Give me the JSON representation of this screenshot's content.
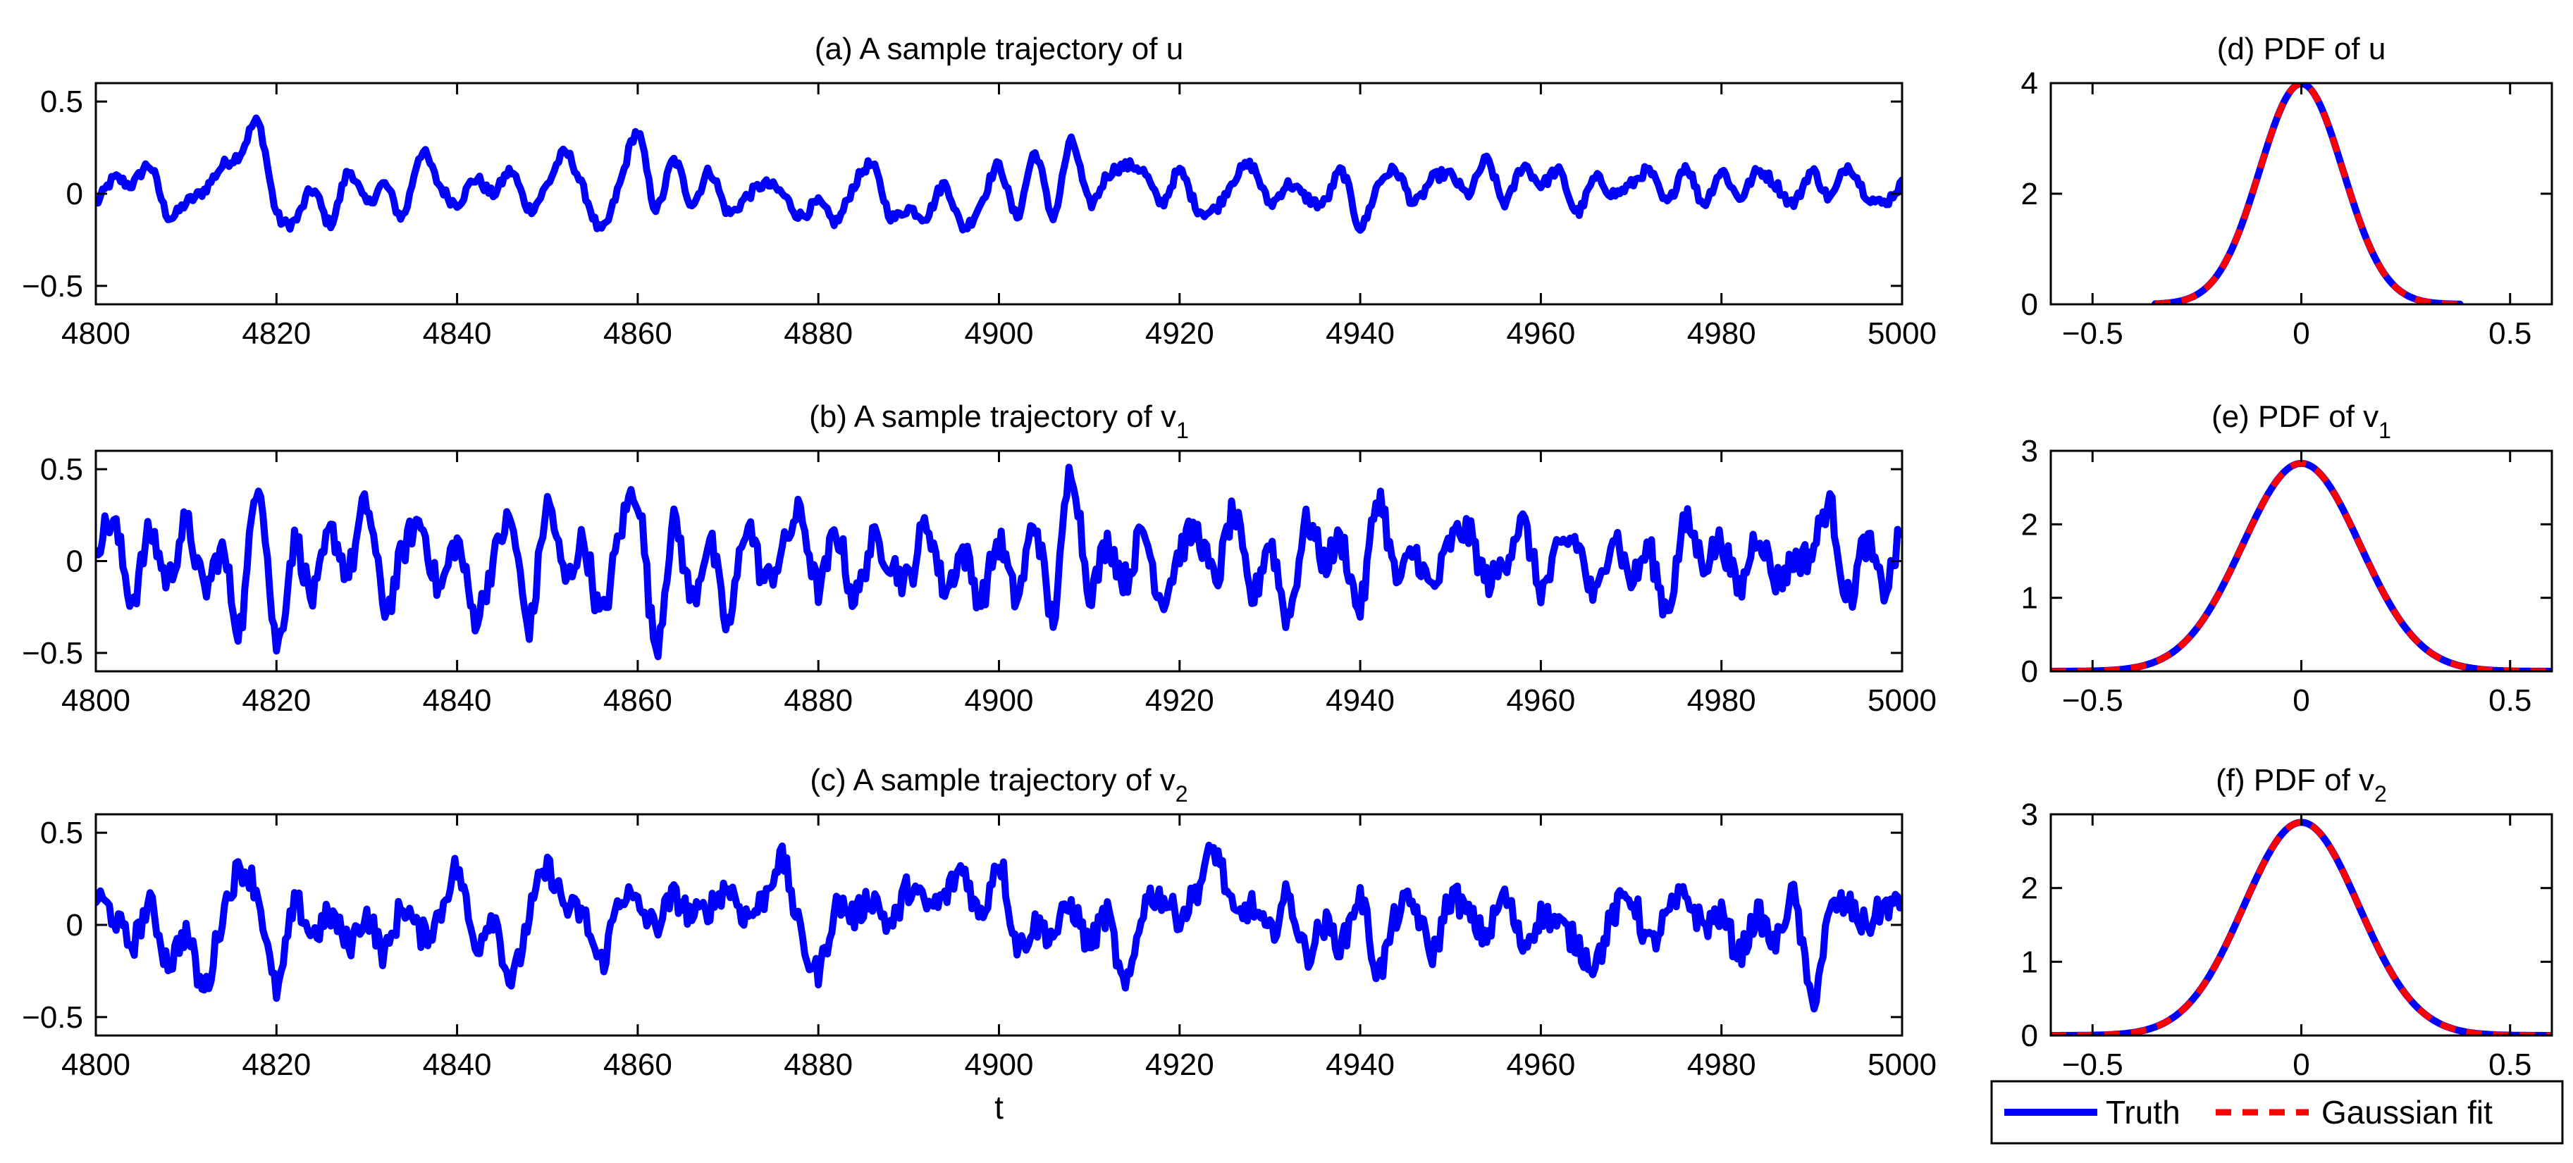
{
  "figure": {
    "xlabel_time": "t",
    "legend": {
      "entries": [
        {
          "label": "Truth",
          "color": "#0000ff",
          "style": "solid"
        },
        {
          "label": "Gaussian fit",
          "color": "#ff0000",
          "style": "dashed"
        }
      ],
      "placement": "bottom-right"
    }
  },
  "chart_data": [
    {
      "id": "a",
      "type": "line",
      "title_prefix": "(a)  A sample trajectory of u",
      "title_sub": "",
      "xlim": [
        4800,
        5000
      ],
      "ylim": [
        -0.6,
        0.6
      ],
      "xticks": [
        4800,
        4820,
        4840,
        4860,
        4880,
        4900,
        4920,
        4940,
        4960,
        4980,
        5000
      ],
      "yticks": [
        -0.5,
        0,
        0.5
      ],
      "ytick_labels": [
        "−0.5",
        "0",
        "0.5"
      ],
      "xlabel": "",
      "series": [
        {
          "name": "u",
          "color": "#0000ff",
          "noise_level": 0.03,
          "x": [
            4800,
            4802,
            4804,
            4806,
            4808,
            4810,
            4812,
            4814,
            4816,
            4818,
            4820,
            4822,
            4824,
            4826,
            4828,
            4830,
            4832,
            4834,
            4836,
            4838,
            4840,
            4842,
            4844,
            4846,
            4848,
            4850,
            4852,
            4854,
            4856,
            4858,
            4860,
            4862,
            4864,
            4866,
            4868,
            4870,
            4872,
            4874,
            4876,
            4878,
            4880,
            4882,
            4884,
            4886,
            4888,
            4890,
            4892,
            4894,
            4896,
            4898,
            4900,
            4902,
            4904,
            4906,
            4908,
            4910,
            4912,
            4914,
            4916,
            4918,
            4920,
            4922,
            4924,
            4926,
            4928,
            4930,
            4932,
            4934,
            4936,
            4938,
            4940,
            4942,
            4944,
            4946,
            4948,
            4950,
            4952,
            4954,
            4956,
            4958,
            4960,
            4962,
            4964,
            4966,
            4968,
            4970,
            4972,
            4974,
            4976,
            4978,
            4980,
            4982,
            4984,
            4986,
            4988,
            4990,
            4992,
            4994,
            4996,
            4998,
            5000
          ],
          "y": [
            -0.05,
            0.08,
            0.05,
            0.15,
            -0.12,
            -0.05,
            0.02,
            0.15,
            0.22,
            0.38,
            -0.1,
            -0.15,
            0.02,
            -0.16,
            0.12,
            -0.05,
            0.05,
            -0.12,
            0.22,
            0.05,
            -0.05,
            0.08,
            0.0,
            0.12,
            -0.08,
            0.05,
            0.22,
            0.02,
            -0.2,
            0.05,
            0.33,
            -0.08,
            0.18,
            -0.05,
            0.12,
            -0.1,
            -0.02,
            0.05,
            0.0,
            -0.12,
            -0.05,
            -0.15,
            0.05,
            0.15,
            -0.12,
            -0.08,
            -0.12,
            0.05,
            -0.18,
            -0.05,
            0.15,
            -0.12,
            0.22,
            -0.12,
            0.28,
            -0.05,
            0.1,
            0.15,
            0.12,
            -0.05,
            0.12,
            -0.08,
            -0.08,
            0.08,
            0.15,
            -0.05,
            0.05,
            -0.02,
            -0.05,
            0.12,
            -0.18,
            0.05,
            0.12,
            -0.05,
            0.08,
            0.1,
            0.0,
            0.18,
            -0.05,
            0.15,
            0.05,
            0.12,
            -0.1,
            0.08,
            0.0,
            0.05,
            0.12,
            -0.05,
            0.15,
            -0.05,
            0.12,
            -0.02,
            0.12,
            0.05,
            -0.05,
            0.12,
            -0.02,
            0.15,
            0.0,
            -0.05,
            0.05
          ]
        }
      ]
    },
    {
      "id": "b",
      "type": "line",
      "title_prefix": "(b)  A sample trajectory of v",
      "title_sub": "1",
      "xlim": [
        4800,
        5000
      ],
      "ylim": [
        -0.6,
        0.6
      ],
      "xticks": [
        4800,
        4820,
        4840,
        4860,
        4880,
        4900,
        4920,
        4940,
        4960,
        4980,
        5000
      ],
      "yticks": [
        -0.5,
        0,
        0.5
      ],
      "ytick_labels": [
        "−0.5",
        "0",
        "0.5"
      ],
      "xlabel": "",
      "series": [
        {
          "name": "v1",
          "color": "#0000ff",
          "noise_level": 0.09,
          "x": [
            4800,
            4802,
            4804,
            4806,
            4808,
            4810,
            4812,
            4814,
            4816,
            4818,
            4820,
            4822,
            4824,
            4826,
            4828,
            4830,
            4832,
            4834,
            4836,
            4838,
            4840,
            4842,
            4844,
            4846,
            4848,
            4850,
            4852,
            4854,
            4856,
            4858,
            4860,
            4862,
            4864,
            4866,
            4868,
            4870,
            4872,
            4874,
            4876,
            4878,
            4880,
            4882,
            4884,
            4886,
            4888,
            4890,
            4892,
            4894,
            4896,
            4898,
            4900,
            4902,
            4904,
            4906,
            4908,
            4910,
            4912,
            4914,
            4916,
            4918,
            4920,
            4922,
            4924,
            4926,
            4928,
            4930,
            4932,
            4934,
            4936,
            4938,
            4940,
            4942,
            4944,
            4946,
            4948,
            4950,
            4952,
            4954,
            4956,
            4958,
            4960,
            4962,
            4964,
            4966,
            4968,
            4970,
            4972,
            4974,
            4976,
            4978,
            4980,
            4982,
            4984,
            4986,
            4988,
            4990,
            4992,
            4994,
            4996,
            4998,
            5000
          ],
          "y": [
            0.1,
            0.2,
            -0.2,
            0.15,
            -0.1,
            0.2,
            -0.15,
            0.05,
            -0.35,
            0.45,
            -0.45,
            0.1,
            -0.2,
            0.15,
            -0.05,
            0.3,
            -0.25,
            0.05,
            0.2,
            -0.15,
            0.1,
            -0.3,
            0.0,
            0.2,
            -0.35,
            0.3,
            -0.1,
            0.1,
            -0.3,
            0.15,
            0.35,
            -0.45,
            0.2,
            -0.2,
            0.1,
            -0.35,
            0.2,
            -0.1,
            0.05,
            0.25,
            -0.15,
            0.15,
            -0.2,
            0.1,
            0.0,
            -0.1,
            0.2,
            -0.15,
            0.05,
            -0.2,
            0.1,
            -0.2,
            0.2,
            -0.3,
            0.5,
            -0.15,
            0.1,
            -0.1,
            0.15,
            -0.2,
            0.05,
            0.15,
            -0.1,
            0.25,
            -0.2,
            0.1,
            -0.3,
            0.2,
            0.0,
            0.1,
            -0.25,
            0.35,
            -0.1,
            0.05,
            -0.15,
            0.1,
            0.15,
            -0.1,
            0.0,
            0.2,
            -0.15,
            0.05,
            0.1,
            -0.2,
            0.15,
            -0.1,
            0.05,
            -0.25,
            0.2,
            0.0,
            0.1,
            -0.15,
            0.15,
            -0.1,
            0.0,
            0.05,
            0.3,
            -0.2,
            0.1,
            -0.15,
            0.15
          ]
        }
      ]
    },
    {
      "id": "c",
      "type": "line",
      "title_prefix": "(c)  A sample trajectory of v",
      "title_sub": "2",
      "xlim": [
        4800,
        5000
      ],
      "ylim": [
        -0.6,
        0.6
      ],
      "xticks": [
        4800,
        4820,
        4840,
        4860,
        4880,
        4900,
        4920,
        4940,
        4960,
        4980,
        5000
      ],
      "yticks": [
        -0.5,
        0,
        0.5
      ],
      "ytick_labels": [
        "−0.5",
        "0",
        "0.5"
      ],
      "xlabel": "t",
      "series": [
        {
          "name": "v2",
          "color": "#0000ff",
          "noise_level": 0.08,
          "x": [
            4800,
            4802,
            4804,
            4806,
            4808,
            4810,
            4812,
            4814,
            4816,
            4818,
            4820,
            4822,
            4824,
            4826,
            4828,
            4830,
            4832,
            4834,
            4836,
            4838,
            4840,
            4842,
            4844,
            4846,
            4848,
            4850,
            4852,
            4854,
            4856,
            4858,
            4860,
            4862,
            4864,
            4866,
            4868,
            4870,
            4872,
            4874,
            4876,
            4878,
            4880,
            4882,
            4884,
            4886,
            4888,
            4890,
            4892,
            4894,
            4896,
            4898,
            4900,
            4902,
            4904,
            4906,
            4908,
            4910,
            4912,
            4914,
            4916,
            4918,
            4920,
            4922,
            4924,
            4926,
            4928,
            4930,
            4932,
            4934,
            4936,
            4938,
            4940,
            4942,
            4944,
            4946,
            4948,
            4950,
            4952,
            4954,
            4956,
            4958,
            4960,
            4962,
            4964,
            4966,
            4968,
            4970,
            4972,
            4974,
            4976,
            4978,
            4980,
            4982,
            4984,
            4986,
            4988,
            4990,
            4992,
            4994,
            4996,
            4998,
            5000
          ],
          "y": [
            0.15,
            0.05,
            -0.1,
            0.1,
            -0.2,
            -0.05,
            -0.35,
            0.05,
            0.3,
            0.15,
            -0.35,
            0.1,
            -0.05,
            0.05,
            -0.1,
            0.05,
            -0.15,
            0.1,
            -0.05,
            0.05,
            0.3,
            -0.1,
            0.05,
            -0.3,
            0.05,
            0.3,
            0.1,
            0.05,
            -0.2,
            0.15,
            0.1,
            0.0,
            0.15,
            0.05,
            0.1,
            0.2,
            0.05,
            0.15,
            0.35,
            -0.05,
            -0.25,
            0.1,
            0.05,
            0.15,
            0.0,
            0.2,
            0.1,
            0.15,
            0.3,
            0.05,
            0.35,
            -0.1,
            0.0,
            -0.05,
            0.1,
            -0.1,
            0.05,
            -0.35,
            0.1,
            0.15,
            0.05,
            0.2,
            0.4,
            0.05,
            0.1,
            -0.05,
            0.15,
            -0.15,
            0.0,
            -0.1,
            0.15,
            -0.25,
            0.05,
            0.1,
            -0.15,
            0.15,
            0.05,
            -0.05,
            0.15,
            -0.1,
            0.05,
            0.0,
            -0.1,
            -0.2,
            0.05,
            0.15,
            -0.1,
            0.05,
            0.15,
            0.0,
            0.05,
            -0.15,
            0.05,
            -0.1,
            0.15,
            -0.4,
            0.05,
            0.1,
            0.0,
            0.1,
            0.1
          ]
        }
      ]
    },
    {
      "id": "d",
      "type": "line",
      "title_prefix": "(d)  PDF of u",
      "title_sub": "",
      "xlim": [
        -0.6,
        0.6
      ],
      "ylim": [
        0,
        4
      ],
      "xticks": [
        -0.5,
        0,
        0.5
      ],
      "xtick_labels": [
        "−0.5",
        "0",
        "0.5"
      ],
      "yticks": [
        0,
        2,
        4
      ],
      "ytick_labels": [
        "0",
        "2",
        "4"
      ],
      "xlabel": "",
      "gaussian": {
        "mean": 0,
        "sigma": 0.1,
        "x_range": [
          -0.35,
          0.38
        ]
      },
      "series": [
        {
          "name": "Truth",
          "color": "#0000ff",
          "style": "solid",
          "x": [
            -0.35,
            -0.3,
            -0.25,
            -0.2,
            -0.15,
            -0.1,
            -0.05,
            0,
            0.05,
            0.1,
            0.15,
            0.2,
            0.25,
            0.3,
            0.38
          ],
          "y": [
            0.01,
            0.04,
            0.18,
            0.54,
            1.3,
            2.42,
            3.52,
            3.99,
            3.52,
            2.42,
            1.3,
            0.54,
            0.18,
            0.04,
            0.0
          ]
        },
        {
          "name": "Gaussian fit",
          "color": "#ff0000",
          "style": "dashed",
          "x": [
            -0.35,
            -0.3,
            -0.25,
            -0.2,
            -0.15,
            -0.1,
            -0.05,
            0,
            0.05,
            0.1,
            0.15,
            0.2,
            0.25,
            0.3,
            0.38
          ],
          "y": [
            0.01,
            0.04,
            0.18,
            0.54,
            1.3,
            2.42,
            3.52,
            3.99,
            3.52,
            2.42,
            1.3,
            0.54,
            0.18,
            0.04,
            0.0
          ]
        }
      ]
    },
    {
      "id": "e",
      "type": "line",
      "title_prefix": "(e)  PDF of v",
      "title_sub": "1",
      "xlim": [
        -0.6,
        0.6
      ],
      "ylim": [
        0,
        3
      ],
      "xticks": [
        -0.5,
        0,
        0.5
      ],
      "xtick_labels": [
        "−0.5",
        "0",
        "0.5"
      ],
      "yticks": [
        0,
        1,
        2,
        3
      ],
      "ytick_labels": [
        "0",
        "1",
        "2",
        "3"
      ],
      "xlabel": "",
      "gaussian": {
        "mean": 0,
        "sigma": 0.141,
        "x_range": [
          -0.6,
          0.6
        ]
      },
      "series": [
        {
          "name": "Truth",
          "color": "#0000ff",
          "style": "solid",
          "x": [
            -0.6,
            -0.5,
            -0.4,
            -0.3,
            -0.2,
            -0.1,
            0,
            0.1,
            0.2,
            0.3,
            0.4,
            0.5,
            0.6
          ],
          "y": [
            0.0,
            0.01,
            0.05,
            0.29,
            1.03,
            2.21,
            2.83,
            2.21,
            1.03,
            0.29,
            0.05,
            0.01,
            0.0
          ]
        },
        {
          "name": "Gaussian fit",
          "color": "#ff0000",
          "style": "dashed",
          "x": [
            -0.6,
            -0.5,
            -0.4,
            -0.3,
            -0.2,
            -0.1,
            0,
            0.1,
            0.2,
            0.3,
            0.4,
            0.5,
            0.6
          ],
          "y": [
            0.0,
            0.01,
            0.05,
            0.29,
            1.03,
            2.21,
            2.83,
            2.21,
            1.03,
            0.29,
            0.05,
            0.01,
            0.0
          ]
        }
      ]
    },
    {
      "id": "f",
      "type": "line",
      "title_prefix": "(f)  PDF of v",
      "title_sub": "2",
      "xlim": [
        -0.6,
        0.6
      ],
      "ylim": [
        0,
        3
      ],
      "xticks": [
        -0.5,
        0,
        0.5
      ],
      "xtick_labels": [
        "−0.5",
        "0",
        "0.5"
      ],
      "yticks": [
        0,
        1,
        2,
        3
      ],
      "ytick_labels": [
        "0",
        "1",
        "2",
        "3"
      ],
      "xlabel": "",
      "gaussian": {
        "mean": 0,
        "sigma": 0.138,
        "x_range": [
          -0.6,
          0.6
        ]
      },
      "series": [
        {
          "name": "Truth",
          "color": "#0000ff",
          "style": "solid",
          "x": [
            -0.6,
            -0.5,
            -0.4,
            -0.3,
            -0.2,
            -0.1,
            0,
            0.1,
            0.2,
            0.3,
            0.4,
            0.5,
            0.6
          ],
          "y": [
            0.0,
            0.01,
            0.04,
            0.27,
            1.01,
            2.2,
            2.89,
            2.2,
            1.01,
            0.27,
            0.04,
            0.01,
            0.0
          ]
        },
        {
          "name": "Gaussian fit",
          "color": "#ff0000",
          "style": "dashed",
          "x": [
            -0.6,
            -0.5,
            -0.4,
            -0.3,
            -0.2,
            -0.1,
            0,
            0.1,
            0.2,
            0.3,
            0.4,
            0.5,
            0.6
          ],
          "y": [
            0.0,
            0.01,
            0.04,
            0.27,
            1.01,
            2.2,
            2.89,
            2.2,
            1.01,
            0.27,
            0.04,
            0.01,
            0.0
          ]
        }
      ]
    }
  ]
}
